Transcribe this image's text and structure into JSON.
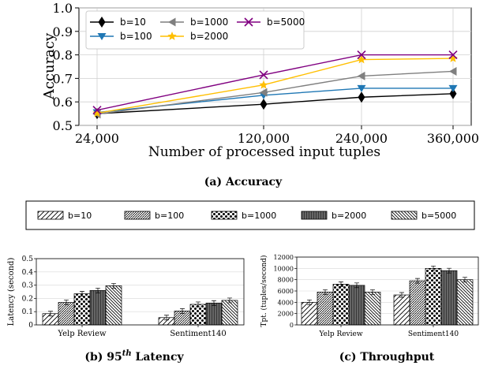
{
  "legend": {
    "entries": [
      {
        "label": "b=10",
        "pattern": "pat-diag-sparse"
      },
      {
        "label": "b=100",
        "pattern": "pat-diag-dense"
      },
      {
        "label": "b=1000",
        "pattern": "pat-dots"
      },
      {
        "label": "b=2000",
        "pattern": "pat-vlines"
      },
      {
        "label": "b=5000",
        "pattern": "pat-back-diag"
      }
    ]
  },
  "chart_data": [
    {
      "type": "line",
      "caption": "(a) Accuracy",
      "xlabel": "Number of processed input tuples",
      "ylabel": "Accuracy",
      "categories": [
        "24,000",
        "120,000",
        "240,000",
        "360,000"
      ],
      "x": [
        24000,
        120000,
        240000,
        360000
      ],
      "ylim": [
        0.5,
        1.0
      ],
      "yticks": [
        "0.5",
        "0.6",
        "0.7",
        "0.8",
        "0.9",
        "1.0"
      ],
      "grid": true,
      "legend_position": "top-left",
      "series": [
        {
          "name": "b=10",
          "values": [
            0.55,
            0.59,
            0.62,
            0.635
          ],
          "color": "#000000",
          "marker": "diamond"
        },
        {
          "name": "b=100",
          "values": [
            0.555,
            0.628,
            0.658,
            0.658
          ],
          "color": "#1f77b4",
          "marker": "triangle-down"
        },
        {
          "name": "b=1000",
          "values": [
            0.548,
            0.64,
            0.71,
            0.73
          ],
          "color": "#7f7f7f",
          "marker": "triangle-left"
        },
        {
          "name": "b=2000",
          "values": [
            0.552,
            0.672,
            0.78,
            0.785
          ],
          "color": "#ffbf00",
          "marker": "star"
        },
        {
          "name": "b=5000",
          "values": [
            0.565,
            0.715,
            0.8,
            0.8
          ],
          "color": "#800080",
          "marker": "x"
        }
      ]
    },
    {
      "type": "bar",
      "caption_prefix": "(b) 95",
      "caption_sup": "th",
      "caption_suffix": "Latency",
      "ylabel": "Latency (second)",
      "categories": [
        "Yelp Review",
        "Sentiment140"
      ],
      "ylim": [
        0,
        0.5
      ],
      "yticks": [
        "0",
        "0.1",
        "0.2",
        "0.3",
        "0.4",
        "0.5"
      ],
      "grid": true,
      "series": [
        {
          "name": "b=10",
          "values": [
            0.085,
            0.055
          ]
        },
        {
          "name": "b=100",
          "values": [
            0.17,
            0.105
          ]
        },
        {
          "name": "b=1000",
          "values": [
            0.235,
            0.155
          ]
        },
        {
          "name": "b=2000",
          "values": [
            0.26,
            0.165
          ]
        },
        {
          "name": "b=5000",
          "values": [
            0.295,
            0.185
          ]
        }
      ]
    },
    {
      "type": "bar",
      "caption": "(c) Throughput",
      "ylabel": "Tpt. (tuples/second)",
      "categories": [
        "Yelp Review",
        "Sentiment140"
      ],
      "ylim": [
        0,
        12000
      ],
      "yticks": [
        "0",
        "2000",
        "4000",
        "6000",
        "8000",
        "10000",
        "12000"
      ],
      "grid": true,
      "series": [
        {
          "name": "b=10",
          "values": [
            4000,
            5300
          ]
        },
        {
          "name": "b=100",
          "values": [
            5800,
            7800
          ]
        },
        {
          "name": "b=1000",
          "values": [
            7200,
            10000
          ]
        },
        {
          "name": "b=2000",
          "values": [
            7000,
            9600
          ]
        },
        {
          "name": "b=5000",
          "values": [
            5800,
            8000
          ]
        }
      ]
    }
  ]
}
